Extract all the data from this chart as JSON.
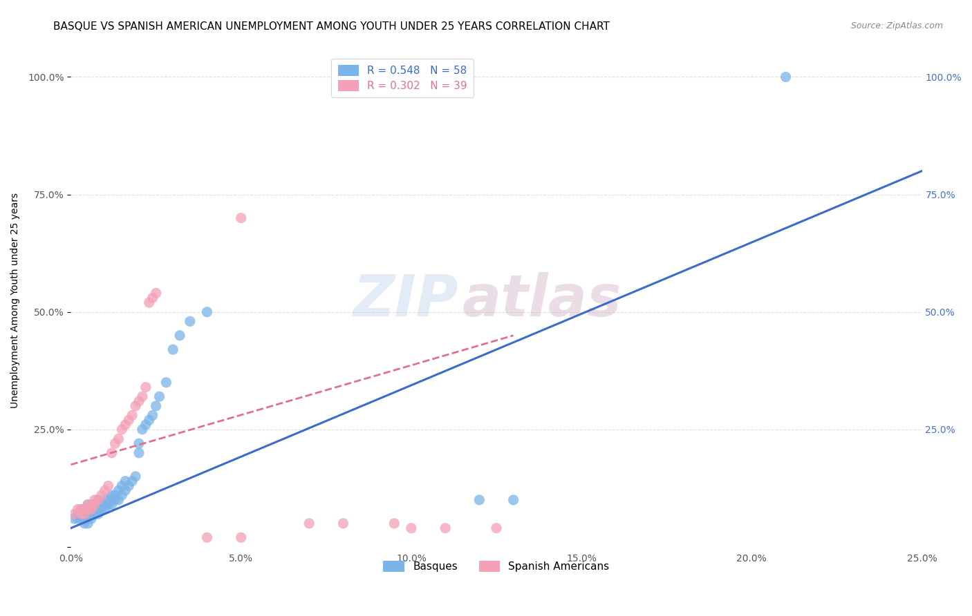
{
  "title": "BASQUE VS SPANISH AMERICAN UNEMPLOYMENT AMONG YOUTH UNDER 25 YEARS CORRELATION CHART",
  "source": "Source: ZipAtlas.com",
  "ylabel": "Unemployment Among Youth under 25 years",
  "xlim": [
    0.0,
    0.25
  ],
  "ylim": [
    0.0,
    1.05
  ],
  "xticks": [
    0.0,
    0.05,
    0.1,
    0.15,
    0.2,
    0.25
  ],
  "yticks": [
    0.0,
    0.25,
    0.5,
    0.75,
    1.0
  ],
  "xticklabels": [
    "0.0%",
    "5.0%",
    "10.0%",
    "15.0%",
    "20.0%",
    "25.0%"
  ],
  "yticklabels_left": [
    "",
    "25.0%",
    "50.0%",
    "75.0%",
    "100.0%"
  ],
  "yticklabels_right": [
    "",
    "25.0%",
    "50.0%",
    "75.0%",
    "100.0%"
  ],
  "basque_R": 0.548,
  "basque_N": 58,
  "spanish_R": 0.302,
  "spanish_N": 39,
  "basque_color": "#7ab4e8",
  "spanish_color": "#f4a0b5",
  "basque_line_color": "#3a6cc8",
  "spanish_line_color": "#e07090",
  "watermark_zip": "ZIP",
  "watermark_atlas": "atlas",
  "basque_line_x": [
    0.0,
    0.25
  ],
  "basque_line_y": [
    0.04,
    0.8
  ],
  "spanish_line_x": [
    0.0,
    0.13
  ],
  "spanish_line_y": [
    0.175,
    0.45
  ],
  "basque_scatter": [
    [
      0.001,
      0.06
    ],
    [
      0.002,
      0.06
    ],
    [
      0.002,
      0.07
    ],
    [
      0.003,
      0.06
    ],
    [
      0.003,
      0.07
    ],
    [
      0.003,
      0.08
    ],
    [
      0.004,
      0.05
    ],
    [
      0.004,
      0.06
    ],
    [
      0.004,
      0.07
    ],
    [
      0.005,
      0.05
    ],
    [
      0.005,
      0.07
    ],
    [
      0.005,
      0.08
    ],
    [
      0.005,
      0.09
    ],
    [
      0.006,
      0.06
    ],
    [
      0.006,
      0.07
    ],
    [
      0.006,
      0.08
    ],
    [
      0.007,
      0.07
    ],
    [
      0.007,
      0.08
    ],
    [
      0.007,
      0.09
    ],
    [
      0.008,
      0.07
    ],
    [
      0.008,
      0.08
    ],
    [
      0.008,
      0.1
    ],
    [
      0.009,
      0.08
    ],
    [
      0.009,
      0.09
    ],
    [
      0.01,
      0.08
    ],
    [
      0.01,
      0.09
    ],
    [
      0.01,
      0.1
    ],
    [
      0.011,
      0.09
    ],
    [
      0.011,
      0.1
    ],
    [
      0.012,
      0.09
    ],
    [
      0.012,
      0.1
    ],
    [
      0.012,
      0.11
    ],
    [
      0.013,
      0.1
    ],
    [
      0.013,
      0.11
    ],
    [
      0.014,
      0.1
    ],
    [
      0.014,
      0.12
    ],
    [
      0.015,
      0.11
    ],
    [
      0.015,
      0.13
    ],
    [
      0.016,
      0.12
    ],
    [
      0.016,
      0.14
    ],
    [
      0.017,
      0.13
    ],
    [
      0.018,
      0.14
    ],
    [
      0.019,
      0.15
    ],
    [
      0.02,
      0.2
    ],
    [
      0.02,
      0.22
    ],
    [
      0.021,
      0.25
    ],
    [
      0.022,
      0.26
    ],
    [
      0.023,
      0.27
    ],
    [
      0.024,
      0.28
    ],
    [
      0.025,
      0.3
    ],
    [
      0.026,
      0.32
    ],
    [
      0.028,
      0.35
    ],
    [
      0.03,
      0.42
    ],
    [
      0.032,
      0.45
    ],
    [
      0.035,
      0.48
    ],
    [
      0.04,
      0.5
    ],
    [
      0.12,
      0.1
    ],
    [
      0.13,
      0.1
    ]
  ],
  "basque_outlier": [
    0.21,
    1.0
  ],
  "spanish_scatter": [
    [
      0.001,
      0.07
    ],
    [
      0.002,
      0.08
    ],
    [
      0.003,
      0.07
    ],
    [
      0.003,
      0.08
    ],
    [
      0.004,
      0.07
    ],
    [
      0.004,
      0.08
    ],
    [
      0.005,
      0.08
    ],
    [
      0.005,
      0.09
    ],
    [
      0.006,
      0.08
    ],
    [
      0.006,
      0.09
    ],
    [
      0.007,
      0.09
    ],
    [
      0.007,
      0.1
    ],
    [
      0.008,
      0.1
    ],
    [
      0.009,
      0.11
    ],
    [
      0.01,
      0.12
    ],
    [
      0.011,
      0.13
    ],
    [
      0.012,
      0.2
    ],
    [
      0.013,
      0.22
    ],
    [
      0.014,
      0.23
    ],
    [
      0.015,
      0.25
    ],
    [
      0.016,
      0.26
    ],
    [
      0.017,
      0.27
    ],
    [
      0.018,
      0.28
    ],
    [
      0.019,
      0.3
    ],
    [
      0.02,
      0.31
    ],
    [
      0.021,
      0.32
    ],
    [
      0.022,
      0.34
    ],
    [
      0.023,
      0.52
    ],
    [
      0.024,
      0.53
    ],
    [
      0.025,
      0.54
    ],
    [
      0.05,
      0.7
    ],
    [
      0.07,
      0.05
    ],
    [
      0.08,
      0.05
    ],
    [
      0.095,
      0.05
    ],
    [
      0.1,
      0.04
    ],
    [
      0.11,
      0.04
    ],
    [
      0.125,
      0.04
    ],
    [
      0.04,
      0.02
    ],
    [
      0.05,
      0.02
    ]
  ],
  "title_fontsize": 11,
  "axis_label_fontsize": 10,
  "tick_fontsize": 10,
  "legend_fontsize": 11,
  "source_fontsize": 9,
  "background_color": "#ffffff",
  "grid_color": "#e0e0e0",
  "left_tick_color": "#555555",
  "right_tick_color": "#4472c4",
  "bottom_tick_color": "#555555"
}
